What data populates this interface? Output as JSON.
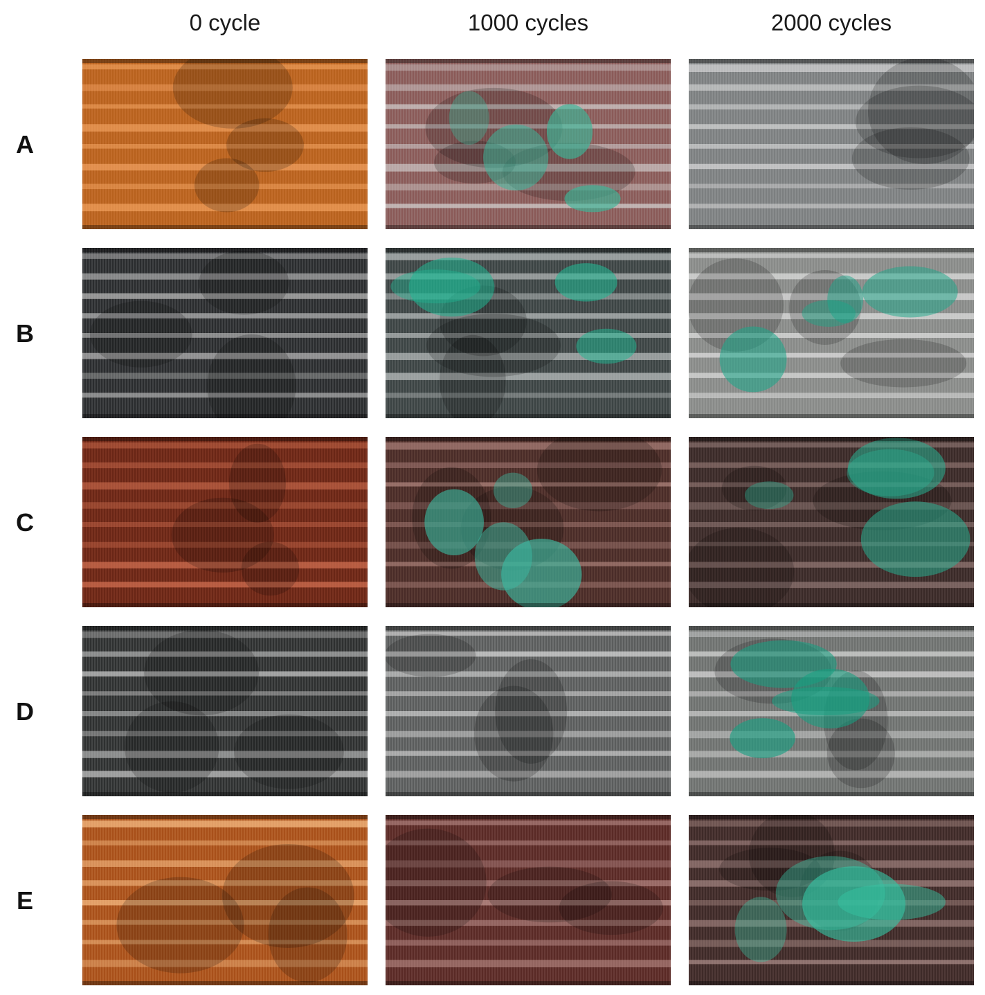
{
  "figure": {
    "columns": [
      "0 cycle",
      "1000 cycles",
      "2000 cycles"
    ],
    "rows": [
      "A",
      "B",
      "C",
      "D",
      "E"
    ],
    "panels": [
      {
        "row": "A",
        "col": "0 cycle",
        "icon": "copper-coil-photo",
        "base": "#b8621e",
        "fin": "#ffb070",
        "corrosion": ""
      },
      {
        "row": "A",
        "col": "1000 cycles",
        "icon": "corroded-coil-photo",
        "base": "#8a5a58",
        "fin": "#d8d8d8",
        "corrosion": "#3ab89a"
      },
      {
        "row": "A",
        "col": "2000 cycles",
        "icon": "corroded-coil-photo",
        "base": "#7c7f80",
        "fin": "#e6e6e6",
        "corrosion": ""
      },
      {
        "row": "B",
        "col": "0 cycle",
        "icon": "coated-coil-photo",
        "base": "#2a2c2e",
        "fin": "#c8c8c8",
        "corrosion": ""
      },
      {
        "row": "B",
        "col": "1000 cycles",
        "icon": "corroded-coil-photo",
        "base": "#3c4444",
        "fin": "#c4c8c8",
        "corrosion": "#1fb894"
      },
      {
        "row": "B",
        "col": "2000 cycles",
        "icon": "corroded-coil-photo",
        "base": "#888a88",
        "fin": "#e4e4e4",
        "corrosion": "#1aa88a"
      },
      {
        "row": "C",
        "col": "0 cycle",
        "icon": "copper-coil-photo",
        "base": "#6a2616",
        "fin": "#e07a5a",
        "corrosion": ""
      },
      {
        "row": "C",
        "col": "1000 cycles",
        "icon": "corroded-coil-photo",
        "base": "#4a2c28",
        "fin": "#b88c84",
        "corrosion": "#3ab8a0"
      },
      {
        "row": "C",
        "col": "2000 cycles",
        "icon": "corroded-coil-photo",
        "base": "#3a2a28",
        "fin": "#a88c88",
        "corrosion": "#27b394"
      },
      {
        "row": "D",
        "col": "0 cycle",
        "icon": "coated-coil-photo",
        "base": "#2e3030",
        "fin": "#d0d0d0",
        "corrosion": ""
      },
      {
        "row": "D",
        "col": "1000 cycles",
        "icon": "corroded-coil-photo",
        "base": "#5a5c5c",
        "fin": "#eaeaea",
        "corrosion": ""
      },
      {
        "row": "D",
        "col": "2000 cycles",
        "icon": "corroded-coil-photo",
        "base": "#6e716f",
        "fin": "#dcdcdc",
        "corrosion": "#16a082"
      },
      {
        "row": "E",
        "col": "0 cycle",
        "icon": "copper-coil-photo",
        "base": "#a8501a",
        "fin": "#ffc890",
        "corrosion": ""
      },
      {
        "row": "E",
        "col": "1000 cycles",
        "icon": "corroded-coil-photo",
        "base": "#5a2a26",
        "fin": "#c89c98",
        "corrosion": ""
      },
      {
        "row": "E",
        "col": "2000 cycles",
        "icon": "corroded-coil-photo",
        "base": "#3e2a28",
        "fin": "#b89894",
        "corrosion": "#35c4a4"
      }
    ]
  }
}
